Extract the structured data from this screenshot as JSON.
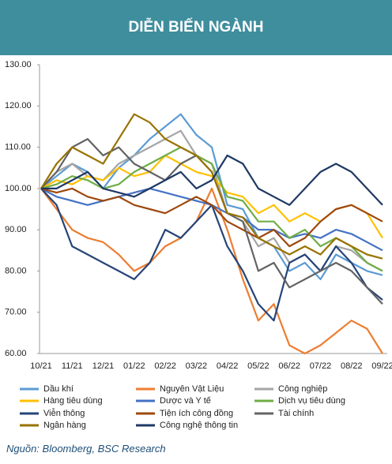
{
  "chart_data": {
    "type": "line",
    "title": "DIỄN BIẾN NGÀNH",
    "source": "Nguồn: Bloomberg, BSC Research",
    "categories": [
      "10/21",
      null,
      "11/21",
      null,
      "12/21",
      null,
      "01/22",
      null,
      "02/22",
      null,
      "03/22",
      null,
      "04/22",
      null,
      "05/22",
      null,
      "06/22",
      null,
      "07/22",
      null,
      "08/22",
      null,
      "09/22"
    ],
    "ylim": [
      60,
      130
    ],
    "yticks": [
      {
        "value": 60,
        "label": "60.00"
      },
      {
        "value": 70,
        "label": "70.00"
      },
      {
        "value": 80,
        "label": "80.00"
      },
      {
        "value": 90,
        "label": "90.00"
      },
      {
        "value": 100,
        "label": "100.00"
      },
      {
        "value": 110,
        "label": "110.00"
      },
      {
        "value": 120,
        "label": "120.00"
      },
      {
        "value": 130,
        "label": "130.00"
      }
    ],
    "grid": false,
    "series": [
      {
        "name": "Dầu khí",
        "color": "#5b9bd5",
        "values": [
          100,
          103,
          106,
          104,
          100,
          105,
          108,
          112,
          115,
          118,
          113,
          110,
          96,
          95,
          88,
          86,
          80,
          82,
          78,
          84,
          82,
          80,
          79
        ]
      },
      {
        "name": "Nguyên Vật Liệu",
        "color": "#ed7d31",
        "values": [
          100,
          95,
          90,
          88,
          87,
          84,
          80,
          82,
          86,
          88,
          92,
          100,
          90,
          78,
          68,
          72,
          62,
          60,
          62,
          65,
          68,
          66,
          60
        ]
      },
      {
        "name": "Công nghiệp",
        "color": "#a5a5a5",
        "values": [
          100,
          104,
          106,
          103,
          102,
          106,
          108,
          110,
          112,
          114,
          108,
          106,
          94,
          92,
          86,
          88,
          82,
          84,
          80,
          86,
          85,
          82,
          80
        ]
      },
      {
        "name": "Hàng tiêu dùng",
        "color": "#ffc000",
        "values": [
          100,
          102,
          101,
          103,
          102,
          105,
          103,
          104,
          108,
          106,
          104,
          103,
          99,
          98,
          94,
          96,
          92,
          94,
          92,
          95,
          96,
          94,
          88
        ]
      },
      {
        "name": "Dược và Y tế",
        "color": "#4472c4",
        "values": [
          100,
          98,
          97,
          96,
          97,
          98,
          99,
          100,
          99,
          98,
          97,
          96,
          94,
          93,
          90,
          90,
          88,
          89,
          88,
          90,
          89,
          87,
          85
        ]
      },
      {
        "name": "Dịch vụ tiêu dùng",
        "color": "#70ad47",
        "values": [
          100,
          101,
          103,
          102,
          100,
          101,
          104,
          106,
          108,
          110,
          108,
          106,
          98,
          97,
          92,
          92,
          88,
          90,
          86,
          88,
          86,
          82,
          80
        ]
      },
      {
        "name": "Viễn thông",
        "color": "#264478",
        "values": [
          100,
          96,
          86,
          84,
          82,
          80,
          78,
          82,
          90,
          88,
          92,
          96,
          86,
          80,
          72,
          68,
          82,
          84,
          80,
          86,
          82,
          76,
          73
        ]
      },
      {
        "name": "Tiện ích công đồng",
        "color": "#9e480e",
        "values": [
          100,
          99,
          100,
          98,
          97,
          98,
          96,
          95,
          94,
          96,
          98,
          96,
          92,
          90,
          88,
          90,
          86,
          88,
          92,
          95,
          96,
          94,
          92
        ]
      },
      {
        "name": "Tài chính",
        "color": "#636363",
        "values": [
          100,
          104,
          110,
          112,
          108,
          110,
          106,
          104,
          102,
          106,
          108,
          104,
          94,
          92,
          80,
          82,
          76,
          78,
          80,
          82,
          80,
          76,
          72
        ]
      },
      {
        "name": "Ngân hàng",
        "color": "#997300",
        "values": [
          100,
          106,
          110,
          108,
          106,
          112,
          118,
          116,
          112,
          110,
          108,
          104,
          94,
          93,
          88,
          86,
          84,
          86,
          84,
          88,
          86,
          84,
          83
        ]
      },
      {
        "name": "Công nghệ thông tin",
        "color": "#1f3864",
        "values": [
          100,
          100,
          102,
          104,
          100,
          99,
          98,
          100,
          102,
          104,
          100,
          102,
          108,
          106,
          100,
          98,
          96,
          100,
          104,
          106,
          104,
          100,
          96
        ]
      }
    ]
  }
}
